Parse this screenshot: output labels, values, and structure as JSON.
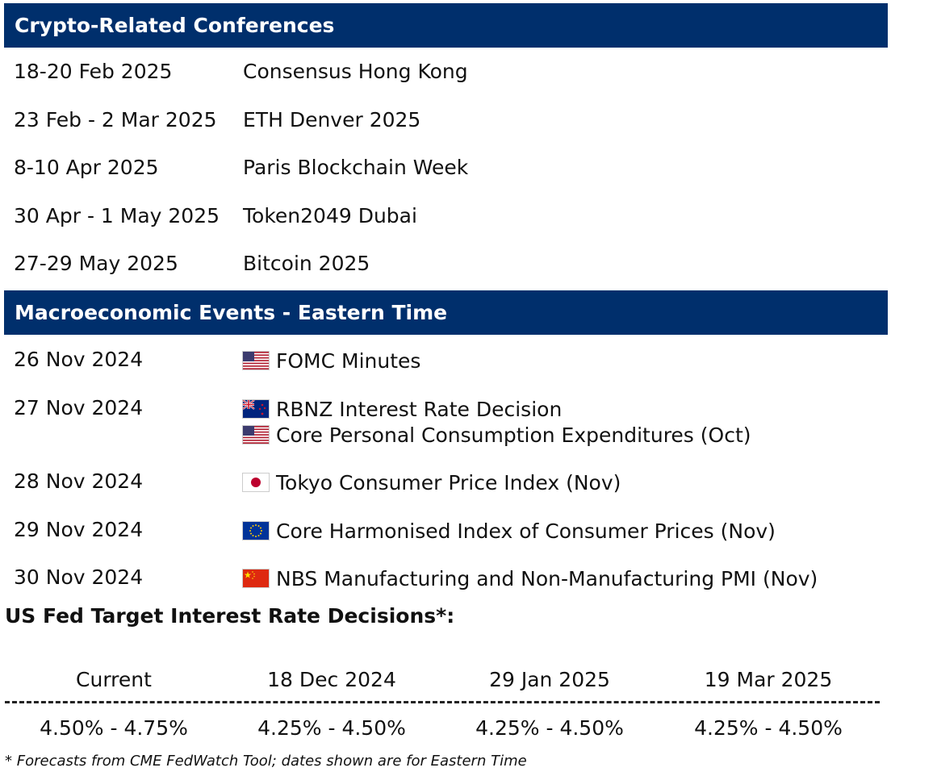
{
  "conferences": {
    "header": "Crypto-Related Conferences",
    "rows": [
      {
        "date": "18-20 Feb 2025",
        "event": "Consensus Hong Kong"
      },
      {
        "date": "23 Feb - 2 Mar 2025",
        "event": "ETH Denver 2025"
      },
      {
        "date": "8-10 Apr 2025",
        "event": "Paris Blockchain Week"
      },
      {
        "date": "30 Apr - 1 May 2025",
        "event": "Token2049 Dubai"
      },
      {
        "date": "27-29 May 2025",
        "event": "Bitcoin 2025"
      }
    ]
  },
  "macro": {
    "header": "Macroeconomic Events - Eastern Time",
    "rows": [
      {
        "date": "26 Nov 2024",
        "events": [
          {
            "flag": "us-flag-icon",
            "text": "FOMC Minutes"
          }
        ]
      },
      {
        "date": "27 Nov 2024",
        "events": [
          {
            "flag": "nz-flag-icon",
            "text": "RBNZ Interest Rate Decision"
          },
          {
            "flag": "us-flag-icon",
            "text": "Core Personal Consumption Expenditures (Oct)"
          }
        ]
      },
      {
        "date": "28 Nov 2024",
        "events": [
          {
            "flag": "jp-flag-icon",
            "text": "Tokyo Consumer Price Index (Nov)"
          }
        ]
      },
      {
        "date": "29 Nov 2024",
        "events": [
          {
            "flag": "eu-flag-icon",
            "text": "Core Harmonised Index of Consumer Prices (Nov)"
          }
        ]
      },
      {
        "date": "30 Nov 2024",
        "events": [
          {
            "flag": "cn-flag-icon",
            "text": "NBS Manufacturing and Non-Manufacturing PMI (Nov)"
          }
        ]
      }
    ]
  },
  "fed": {
    "title": "US Fed Target Interest Rate Decisions*:",
    "columns": [
      {
        "label": "Current",
        "value": "4.50% - 4.75%"
      },
      {
        "label": "18 Dec 2024",
        "value": "4.25% - 4.50%"
      },
      {
        "label": "29 Jan 2025",
        "value": "4.25% - 4.50%"
      },
      {
        "label": "19 Mar 2025",
        "value": "4.25% - 4.50%"
      }
    ],
    "footnote": "* Forecasts from CME FedWatch Tool; dates shown are for Eastern Time"
  },
  "colors": {
    "header_bg": "#002f6c",
    "header_text": "#ffffff"
  }
}
